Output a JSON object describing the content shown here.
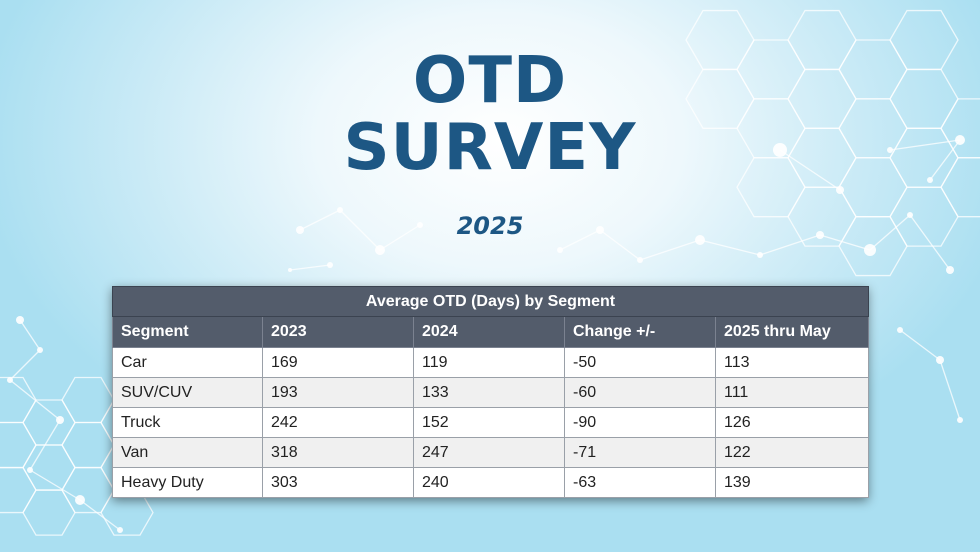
{
  "title_line1": "OTD",
  "title_line2": "SURVEY",
  "year": "2025",
  "table": {
    "caption": "Average OTD (Days) by Segment",
    "headers": [
      "Segment",
      "2023",
      "2024",
      "Change +/-",
      "2025 thru May"
    ],
    "rows": [
      [
        "Car",
        "169",
        "119",
        "-50",
        "113"
      ],
      [
        "SUV/CUV",
        "193",
        "133",
        "-60",
        "111"
      ],
      [
        "Truck",
        "242",
        "152",
        "-90",
        "126"
      ],
      [
        "Van",
        "318",
        "247",
        "-71",
        "122"
      ],
      [
        "Heavy Duty",
        "303",
        "240",
        "-63",
        "139"
      ]
    ]
  },
  "colors": {
    "title": "#1d5784",
    "header_bg": "#535c6b",
    "background_light": "#ffffff",
    "background_edge": "#aadff1"
  }
}
